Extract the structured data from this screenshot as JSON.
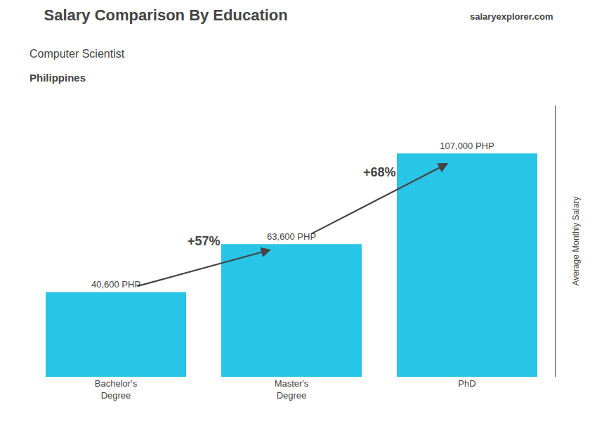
{
  "chart_data": {
    "type": "bar",
    "title": "Salary Comparison By Education",
    "subtitle": "Computer Scientist",
    "ylabel": "Average Monthly Salary",
    "categories": [
      "Bachelor's\nDegree",
      "Master's\nDegree",
      "PhD"
    ],
    "values": [
      40600,
      63600,
      107000
    ],
    "value_labels": [
      "40,600 PHP",
      "63,600 PHP",
      "107,000 PHP"
    ],
    "data_labels": true,
    "color": "#29c5e6",
    "ylim": [
      0,
      130000
    ],
    "tick_labels": "x",
    "grid": false,
    "annotations": [
      {
        "text": "Philippines"
      },
      {
        "text": "salaryexplorer.com"
      },
      {
        "text": "+57%",
        "from": "Bachelor's\nDegree",
        "to": "Master's\nDegree"
      },
      {
        "text": "+68%",
        "from": "Master's\nDegree",
        "to": "PhD"
      }
    ]
  }
}
